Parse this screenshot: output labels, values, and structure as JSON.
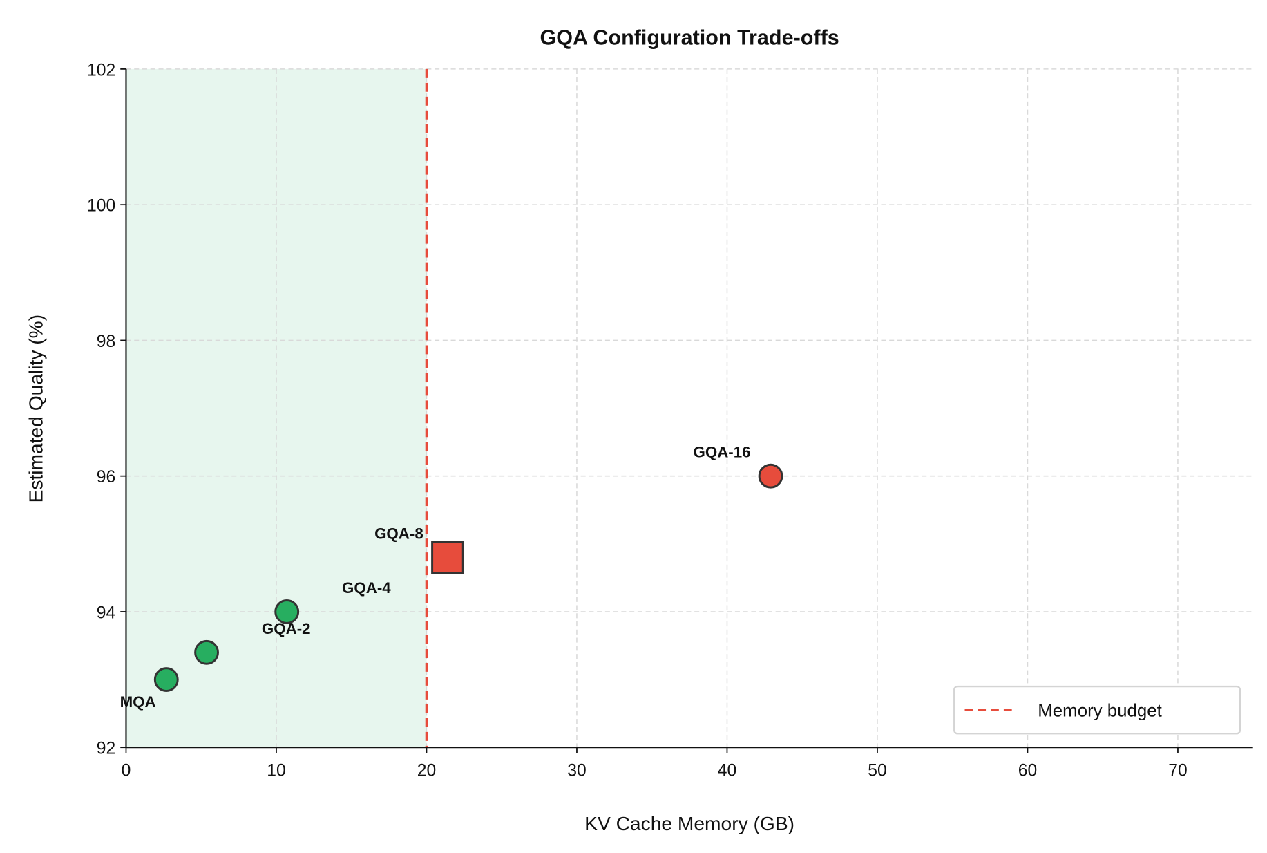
{
  "chart_data": {
    "type": "scatter",
    "title": "GQA Configuration Trade-offs",
    "xlabel": "KV Cache Memory (GB)",
    "ylabel": "Estimated Quality (%)",
    "xlim": [
      0,
      75
    ],
    "ylim": [
      92,
      102
    ],
    "xticks": [
      0,
      10,
      20,
      30,
      40,
      50,
      60,
      70
    ],
    "yticks": [
      92,
      94,
      96,
      98,
      100,
      102
    ],
    "grid": true,
    "legend_placement": "lower-right",
    "points": [
      {
        "label": "MQA",
        "x": 2.68,
        "y": 93.0,
        "marker": "circle",
        "color": "#27ae60"
      },
      {
        "label": "GQA-2",
        "x": 5.36,
        "y": 93.4,
        "marker": "circle",
        "color": "#27ae60"
      },
      {
        "label": "GQA-4",
        "x": 10.7,
        "y": 94.0,
        "marker": "circle",
        "color": "#27ae60"
      },
      {
        "label": "GQA-8",
        "x": 21.4,
        "y": 94.8,
        "marker": "square",
        "color": "#e74c3c"
      },
      {
        "label": "GQA-16",
        "x": 42.9,
        "y": 96.0,
        "marker": "circle",
        "color": "#e74c3c"
      }
    ],
    "budget": {
      "name": "Memory budget",
      "x": 20,
      "color": "#e74c3c",
      "style": "dashed"
    },
    "feasible_region": {
      "x": [
        0,
        20
      ],
      "color": "#27ae60"
    }
  }
}
